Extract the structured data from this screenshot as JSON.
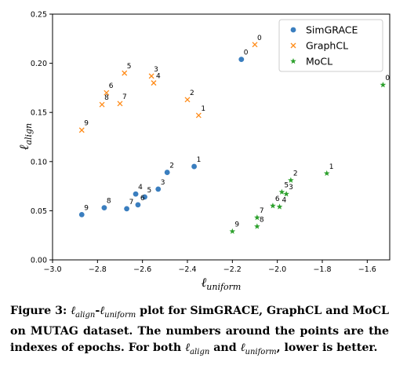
{
  "chart_data": {
    "type": "scatter",
    "xlabel_main": "ℓ",
    "xlabel_sub": "uniform",
    "ylabel_main": "ℓ",
    "ylabel_sub": "align",
    "xlim": [
      -3.0,
      -1.5
    ],
    "ylim": [
      0.0,
      0.25
    ],
    "xticks": [
      -3.0,
      -2.8,
      -2.6,
      -2.4,
      -2.2,
      -2.0,
      -1.8,
      -1.6
    ],
    "xtick_labels": [
      "−3.0",
      "−2.8",
      "−2.6",
      "−2.4",
      "−2.2",
      "−2.0",
      "−1.8",
      "−1.6"
    ],
    "yticks": [
      0.0,
      0.05,
      0.1,
      0.15,
      0.2,
      0.25
    ],
    "ytick_labels": [
      "0.00",
      "0.05",
      "0.10",
      "0.15",
      "0.20",
      "0.25"
    ],
    "grid": false,
    "legend_position": "top-right",
    "series": [
      {
        "name": "SimGRACE",
        "marker": "circle",
        "color": "#3a7ebf",
        "points": [
          {
            "x": -2.16,
            "y": 0.204,
            "label": "0"
          },
          {
            "x": -2.37,
            "y": 0.095,
            "label": "1"
          },
          {
            "x": -2.49,
            "y": 0.089,
            "label": "2"
          },
          {
            "x": -2.53,
            "y": 0.072,
            "label": "3"
          },
          {
            "x": -2.63,
            "y": 0.067,
            "label": "4"
          },
          {
            "x": -2.59,
            "y": 0.064,
            "label": "5"
          },
          {
            "x": -2.62,
            "y": 0.056,
            "label": "6"
          },
          {
            "x": -2.67,
            "y": 0.052,
            "label": "7"
          },
          {
            "x": -2.77,
            "y": 0.053,
            "label": "8"
          },
          {
            "x": -2.87,
            "y": 0.046,
            "label": "9"
          }
        ]
      },
      {
        "name": "GraphCL",
        "marker": "x",
        "color": "#ff8c1a",
        "points": [
          {
            "x": -2.1,
            "y": 0.219,
            "label": "0"
          },
          {
            "x": -2.35,
            "y": 0.147,
            "label": "1"
          },
          {
            "x": -2.4,
            "y": 0.163,
            "label": "2"
          },
          {
            "x": -2.56,
            "y": 0.187,
            "label": "3"
          },
          {
            "x": -2.55,
            "y": 0.18,
            "label": "4"
          },
          {
            "x": -2.68,
            "y": 0.19,
            "label": "5"
          },
          {
            "x": -2.76,
            "y": 0.17,
            "label": "6"
          },
          {
            "x": -2.7,
            "y": 0.159,
            "label": "7"
          },
          {
            "x": -2.78,
            "y": 0.158,
            "label": "8"
          },
          {
            "x": -2.87,
            "y": 0.132,
            "label": "9"
          }
        ]
      },
      {
        "name": "MoCL",
        "marker": "star",
        "color": "#2ca02c",
        "points": [
          {
            "x": -1.53,
            "y": 0.178,
            "label": "0"
          },
          {
            "x": -1.78,
            "y": 0.088,
            "label": "1"
          },
          {
            "x": -1.94,
            "y": 0.081,
            "label": "2"
          },
          {
            "x": -1.96,
            "y": 0.067,
            "label": "3"
          },
          {
            "x": -1.99,
            "y": 0.054,
            "label": "4"
          },
          {
            "x": -1.98,
            "y": 0.069,
            "label": "5"
          },
          {
            "x": -2.02,
            "y": 0.055,
            "label": "6"
          },
          {
            "x": -2.09,
            "y": 0.043,
            "label": "7"
          },
          {
            "x": -2.09,
            "y": 0.034,
            "label": "8"
          },
          {
            "x": -2.2,
            "y": 0.029,
            "label": "9"
          }
        ]
      }
    ]
  },
  "caption": "Figure 3: ℓ_align-ℓ_uniform plot for SimGRACE, GraphCL and MoCL on MUTAG dataset. The numbers around the points are the indexes of epochs. For both ℓ_align and ℓ_uniform, lower is better."
}
